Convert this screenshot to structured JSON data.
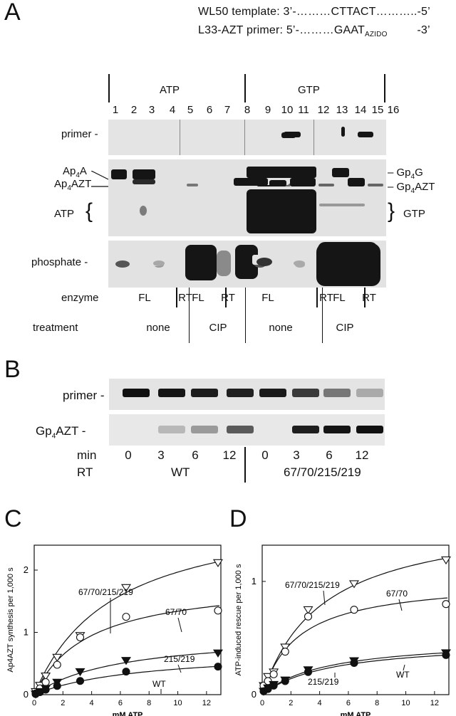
{
  "panelA": {
    "letter": "A",
    "template_line": {
      "name": "WL50  template: 3’-",
      "seq": "………CTTACT………..-5’"
    },
    "primer_line": {
      "name": "L33-AZT primer: 5’-",
      "seq": "………GAAT",
      "sub": "AZIDO",
      "end": "         -3’"
    },
    "group_atp": "ATP",
    "group_gtp": "GTP",
    "lanes": [
      "1",
      "2",
      "3",
      "4",
      "5",
      "6",
      "7",
      "8",
      "9",
      "10",
      "11",
      "12",
      "13",
      "14",
      "15",
      "16"
    ],
    "row_primer": "primer -",
    "ap4a": "Ap",
    "ap4a_sub": "4",
    "ap4a_end": "A",
    "ap4azt": "Ap",
    "ap4azt_sub": "4",
    "ap4azt_end": "AZT",
    "atp_left": "ATP",
    "gp4g": "– Gp",
    "gp4g_sub": "4",
    "gp4g_end": "G",
    "gp4azt": "– Gp",
    "gp4azt_sub": "4",
    "gp4azt_end": "AZT",
    "gtp_right": "GTP",
    "row_phosphate": "phosphate -",
    "enzyme_label": "enzyme",
    "enzyme_values": [
      "FL",
      "RT",
      "FL",
      "RT",
      "FL",
      "RT",
      "FL",
      "RT"
    ],
    "treatment_label": "treatment",
    "treatment_values": [
      "none",
      "CIP",
      "none",
      "CIP"
    ]
  },
  "panelB": {
    "letter": "B",
    "row_primer": "primer -",
    "row_gp4azt": "Gp",
    "row_gp4azt_sub": "4",
    "row_gp4azt_end": "AZT -",
    "min_label": "min",
    "min_values": [
      "0",
      "3",
      "6",
      "12",
      "0",
      "3",
      "6",
      "12"
    ],
    "rt_label": "RT",
    "rt_wt": "WT",
    "rt_mut": "67/70/215/219"
  },
  "chart_data": [
    {
      "type": "scatter",
      "panel": "C",
      "xlabel": "mM ATP",
      "ylabel": "Ap4AZT synthesis per 1,000 s",
      "xlim": [
        0,
        13
      ],
      "ylim": [
        0,
        2.4
      ],
      "xticks": [
        0,
        2,
        4,
        6,
        8,
        10,
        12
      ],
      "yticks": [
        0,
        1,
        2
      ],
      "series": [
        {
          "name": "67/70/215/219",
          "marker": "open-triangle-down",
          "x": [
            0.1,
            0.4,
            0.8,
            1.6,
            3.2,
            6.4,
            12.8
          ],
          "y": [
            0.05,
            0.15,
            0.3,
            0.6,
            0.95,
            1.72,
            2.12
          ]
        },
        {
          "name": "67/70",
          "marker": "open-circle",
          "x": [
            0.1,
            0.4,
            0.8,
            1.6,
            3.2,
            6.4,
            12.8
          ],
          "y": [
            0.02,
            0.1,
            0.2,
            0.48,
            0.92,
            1.25,
            1.35
          ]
        },
        {
          "name": "215/219",
          "marker": "filled-triangle-down",
          "x": [
            0.1,
            0.4,
            0.8,
            1.6,
            3.2,
            6.4,
            12.8
          ],
          "y": [
            0.01,
            0.05,
            0.1,
            0.2,
            0.37,
            0.55,
            0.67
          ]
        },
        {
          "name": "WT",
          "marker": "filled-circle",
          "x": [
            0.1,
            0.4,
            0.8,
            1.6,
            3.2,
            6.4,
            12.8
          ],
          "y": [
            0.01,
            0.04,
            0.08,
            0.14,
            0.22,
            0.37,
            0.45
          ]
        }
      ],
      "fits": [
        {
          "vmax": 3.05,
          "km": 5.5
        },
        {
          "vmax": 1.85,
          "km": 3.8
        },
        {
          "vmax": 1.0,
          "km": 6.0
        },
        {
          "vmax": 0.72,
          "km": 7.5
        }
      ]
    },
    {
      "type": "scatter",
      "panel": "D",
      "xlabel": "mM ATP",
      "ylabel": "ATP-induced rescue per 1,000 s",
      "xlim": [
        0,
        13
      ],
      "ylim": [
        0,
        1.32
      ],
      "xticks": [
        0,
        2,
        4,
        6,
        8,
        10,
        12
      ],
      "yticks": [
        0,
        1
      ],
      "series": [
        {
          "name": "67/70/215/219",
          "marker": "open-triangle-down",
          "x": [
            0.1,
            0.4,
            0.8,
            1.6,
            3.2,
            6.4,
            12.8
          ],
          "y": [
            0.08,
            0.16,
            0.2,
            0.42,
            0.75,
            0.98,
            1.19
          ]
        },
        {
          "name": "67/70",
          "marker": "open-circle",
          "x": [
            0.1,
            0.4,
            0.8,
            1.6,
            3.2,
            6.4,
            12.8
          ],
          "y": [
            0.08,
            0.12,
            0.18,
            0.38,
            0.69,
            0.75,
            0.8
          ]
        },
        {
          "name": "215/219",
          "marker": "filled-triangle-down",
          "x": [
            0.1,
            0.4,
            0.8,
            1.6,
            3.2,
            6.4,
            12.8
          ],
          "y": [
            0.03,
            0.06,
            0.09,
            0.13,
            0.22,
            0.3,
            0.37
          ]
        },
        {
          "name": "WT",
          "marker": "filled-circle",
          "x": [
            0.1,
            0.4,
            0.8,
            1.6,
            3.2,
            6.4,
            12.8
          ],
          "y": [
            0.03,
            0.05,
            0.08,
            0.12,
            0.2,
            0.28,
            0.35
          ]
        }
      ],
      "fits": [
        {
          "vmax": 1.6,
          "km": 4.2
        },
        {
          "vmax": 1.02,
          "km": 2.5
        },
        {
          "vmax": 0.5,
          "km": 4.5
        },
        {
          "vmax": 0.48,
          "km": 4.8
        }
      ]
    }
  ],
  "panelC": {
    "letter": "C",
    "labels": [
      "67/70/215/219",
      "67/70",
      "215/219",
      "WT"
    ]
  },
  "panelD": {
    "letter": "D",
    "labels": [
      "67/70/215/219",
      "67/70",
      "215/219",
      "WT"
    ]
  }
}
